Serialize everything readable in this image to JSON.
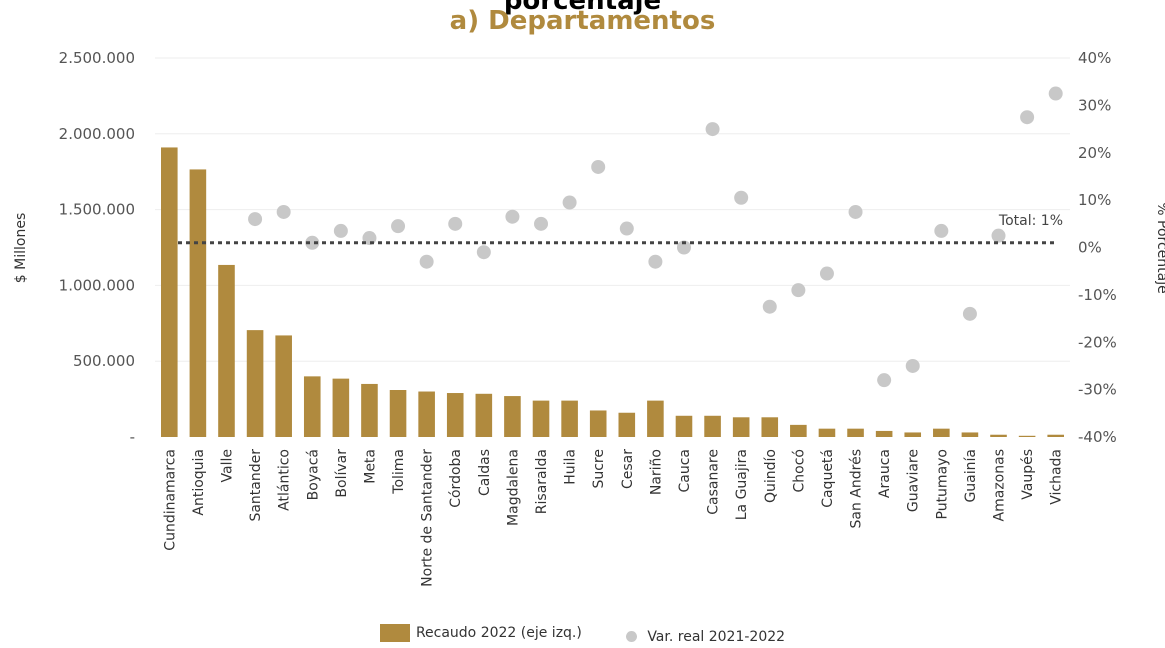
{
  "header": {
    "clipped_title": "porcentaje",
    "title": "a)  Departamentos"
  },
  "chart_data": {
    "type": "bar",
    "title": "a)  Departamentos",
    "ylabel": "$ Millones",
    "y2label": "% Porcentaje",
    "ylim": [
      0,
      2500000
    ],
    "y2lim": [
      -40,
      40
    ],
    "y_ticks": [
      "-",
      "500.000",
      "1.000.000",
      "1.500.000",
      "2.000.000",
      "2.500.000"
    ],
    "y2_ticks": [
      "-40%",
      "-30%",
      "-20%",
      "-10%",
      "0%",
      "10%",
      "20%",
      "30%",
      "40%"
    ],
    "grid": true,
    "legend_position": "bottom",
    "categories": [
      "Cundinamarca",
      "Antioquia",
      "Valle",
      "Santander",
      "Atlántico",
      "Boyacá",
      "Bolívar",
      "Meta",
      "Tolima",
      "Norte de Santander",
      "Córdoba",
      "Caldas",
      "Magdalena",
      "Risaralda",
      "Huila",
      "Sucre",
      "Cesar",
      "Nariño",
      "Cauca",
      "Casanare",
      "La Guajira",
      "Quindío",
      "Chocó",
      "Caquetá",
      "San Andrés",
      "Arauca",
      "Guaviare",
      "Putumayo",
      "Guainía",
      "Amazonas",
      "Vaupés",
      "Vichada"
    ],
    "series": [
      {
        "name": "Recaudo 2022 (eje izq.)",
        "type": "bar",
        "axis": "left",
        "color": "#b08a3e",
        "values": [
          1910000,
          1765000,
          1135000,
          705000,
          670000,
          400000,
          385000,
          350000,
          310000,
          300000,
          290000,
          285000,
          270000,
          240000,
          240000,
          175000,
          160000,
          240000,
          140000,
          140000,
          130000,
          130000,
          80000,
          55000,
          55000,
          40000,
          30000,
          55000,
          30000,
          15000,
          8000,
          15000
        ]
      },
      {
        "name": "Var. real 2021-2022",
        "type": "scatter",
        "axis": "right",
        "color": "#c8c8c8",
        "values": [
          null,
          null,
          null,
          6,
          7.5,
          1,
          3.5,
          2,
          4.5,
          -3,
          5,
          -1,
          6.5,
          5,
          9.5,
          17,
          4,
          -3,
          0,
          25,
          10.5,
          -12.5,
          -9,
          -5.5,
          7.5,
          -28,
          -25,
          3.5,
          -14,
          2.5,
          27.5,
          32.5
        ]
      }
    ],
    "reference_line": {
      "axis": "right",
      "value": 1,
      "label": "Total: 1%"
    }
  }
}
